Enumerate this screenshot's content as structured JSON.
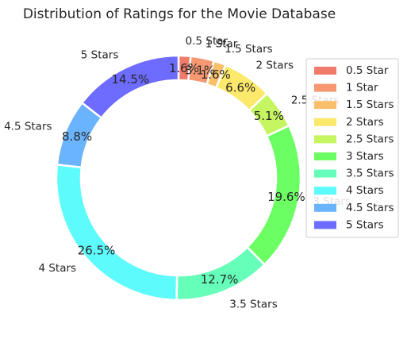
{
  "chart_data": {
    "type": "pie",
    "subtype": "donut",
    "title": "Distribution of Ratings for the Movie Database",
    "categories": [
      "0.5 Star",
      "1 Star",
      "1.5 Stars",
      "2 Stars",
      "2.5 Stars",
      "3 Stars",
      "3.5 Stars",
      "4 Stars",
      "4.5 Stars",
      "5 Stars"
    ],
    "values": [
      1.6,
      3.1,
      1.6,
      6.6,
      5.1,
      19.6,
      12.7,
      26.5,
      8.8,
      14.5
    ],
    "value_labels": [
      "1.6%",
      "3.1%",
      "1.6%",
      "6.6%",
      "5.1%",
      "19.6%",
      "12.7%",
      "26.5%",
      "8.8%",
      "14.5%"
    ],
    "colors": [
      "#f07b6b",
      "#f79872",
      "#f9bf6a",
      "#fce86a",
      "#c5f560",
      "#6cff64",
      "#66ffb9",
      "#5dfbfb",
      "#6ab4fe",
      "#6d6cff"
    ],
    "legend": {
      "placement": "right",
      "frame": true
    },
    "start_angle_deg": 90,
    "direction": "clockwise"
  }
}
